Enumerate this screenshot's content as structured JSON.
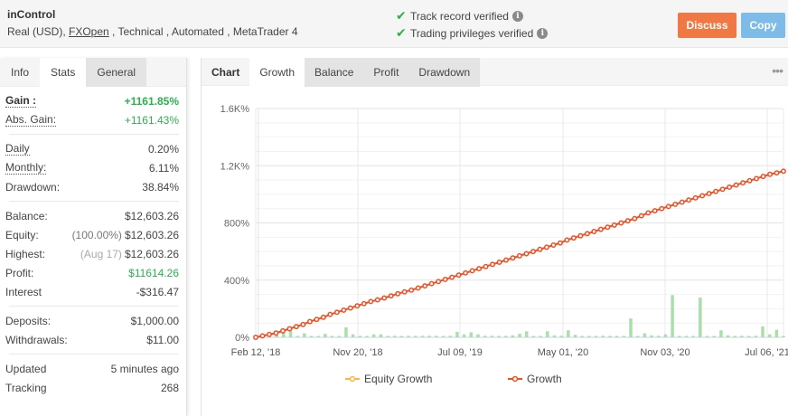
{
  "header": {
    "system_name": "inControl",
    "meta_prefix": "Real (USD), ",
    "broker": "FXOpen",
    "meta_suffix": " , Technical , Automated , MetaTrader 4",
    "verifications": [
      {
        "label": "Track record verified",
        "icon": "check-icon"
      },
      {
        "label": "Trading privileges verified",
        "icon": "check-icon"
      }
    ],
    "info_glyph": "i",
    "discuss_label": "Discuss",
    "copy_label": "Copy",
    "colors": {
      "discuss": "#f07845",
      "copy": "#7fbbe8",
      "check": "#2bb24c"
    }
  },
  "left_tabs": [
    {
      "label": "Info",
      "state": "inactive"
    },
    {
      "label": "Stats",
      "state": "active"
    },
    {
      "label": "General",
      "state": "gray"
    }
  ],
  "stats": {
    "gain": {
      "label": "Gain :",
      "value": "+1161.85%"
    },
    "abs_gain": {
      "label": "Abs. Gain:",
      "value": "+1161.43%"
    },
    "daily": {
      "label": "Daily",
      "value": "0.20%"
    },
    "monthly": {
      "label": "Monthly:",
      "value": "6.11%"
    },
    "drawdown": {
      "label": "Drawdown:",
      "value": "38.84%"
    },
    "balance": {
      "label": "Balance:",
      "value": "$12,603.26"
    },
    "equity": {
      "label": "Equity:",
      "sub": "(100.00%)",
      "value": "$12,603.26"
    },
    "highest": {
      "label": "Highest:",
      "sub": "(Aug 17)",
      "value": "$12,603.26"
    },
    "profit": {
      "label": "Profit:",
      "value": "$11614.26"
    },
    "interest": {
      "label": "Interest",
      "value": "-$316.47"
    },
    "deposits": {
      "label": "Deposits:",
      "value": "$1,000.00"
    },
    "withdrawals": {
      "label": "Withdrawals:",
      "value": "$11.00"
    },
    "updated": {
      "label": "Updated",
      "value": "5 minutes ago"
    },
    "tracking": {
      "label": "Tracking",
      "value": "268"
    }
  },
  "chart_tabs": {
    "title": "Chart",
    "items": [
      {
        "label": "Growth",
        "state": "active"
      },
      {
        "label": "Balance",
        "state": "gray"
      },
      {
        "label": "Profit",
        "state": "gray"
      },
      {
        "label": "Drawdown",
        "state": "gray"
      }
    ],
    "more_glyph": "•••"
  },
  "chart_data": {
    "type": "line",
    "title": "Growth",
    "xlabel": "",
    "ylabel": "",
    "ylim": [
      0,
      1600
    ],
    "y_ticks": [
      "0%",
      "400%",
      "800%",
      "1.2K%",
      "1.6K%"
    ],
    "x_ticks": [
      "Feb 12, '18",
      "Nov 20, '18",
      "Jul 09, '19",
      "May 01, '20",
      "Nov 03, '20",
      "Jul 06, '21"
    ],
    "grid": true,
    "legend": [
      "Equity Growth",
      "Growth"
    ],
    "legend_position": "bottom",
    "series": [
      {
        "name": "Growth",
        "color": "#f04e23",
        "x_start": "Feb 12, '18",
        "x_end": "Aug '21",
        "values": [
          0,
          10,
          20,
          30,
          45,
          60,
          75,
          90,
          110,
          125,
          140,
          160,
          175,
          190,
          205,
          220,
          235,
          250,
          262,
          275,
          290,
          305,
          318,
          330,
          345,
          360,
          375,
          390,
          405,
          420,
          435,
          450,
          465,
          480,
          495,
          510,
          525,
          540,
          555,
          570,
          585,
          600,
          615,
          630,
          645,
          660,
          680,
          695,
          710,
          725,
          740,
          755,
          770,
          785,
          800,
          815,
          830,
          850,
          870,
          885,
          900,
          915,
          930,
          945,
          960,
          975,
          990,
          1005,
          1020,
          1035,
          1050,
          1065,
          1080,
          1095,
          1110,
          1125,
          1140,
          1150,
          1161.85
        ]
      },
      {
        "name": "Equity Growth",
        "color": "#f6b93b",
        "values": []
      }
    ],
    "bars": {
      "name": "Monthly change",
      "color": "#a8e0a8",
      "values": [
        2,
        3,
        8,
        10,
        18,
        1,
        8,
        1,
        1,
        7,
        1,
        2,
        20,
        6,
        1,
        1,
        6,
        6,
        1,
        3,
        2,
        3,
        2,
        3,
        3,
        3,
        2,
        3,
        11,
        6,
        10,
        6,
        3,
        3,
        2,
        3,
        4,
        7,
        12,
        2,
        2,
        12,
        4,
        3,
        14,
        5,
        2,
        2,
        2,
        3,
        2,
        2,
        2,
        38,
        2,
        8,
        4,
        3,
        6,
        85,
        2,
        2,
        2,
        80,
        2,
        2,
        14,
        4,
        2,
        3,
        2,
        3,
        22,
        6,
        15,
        2
      ]
    }
  }
}
